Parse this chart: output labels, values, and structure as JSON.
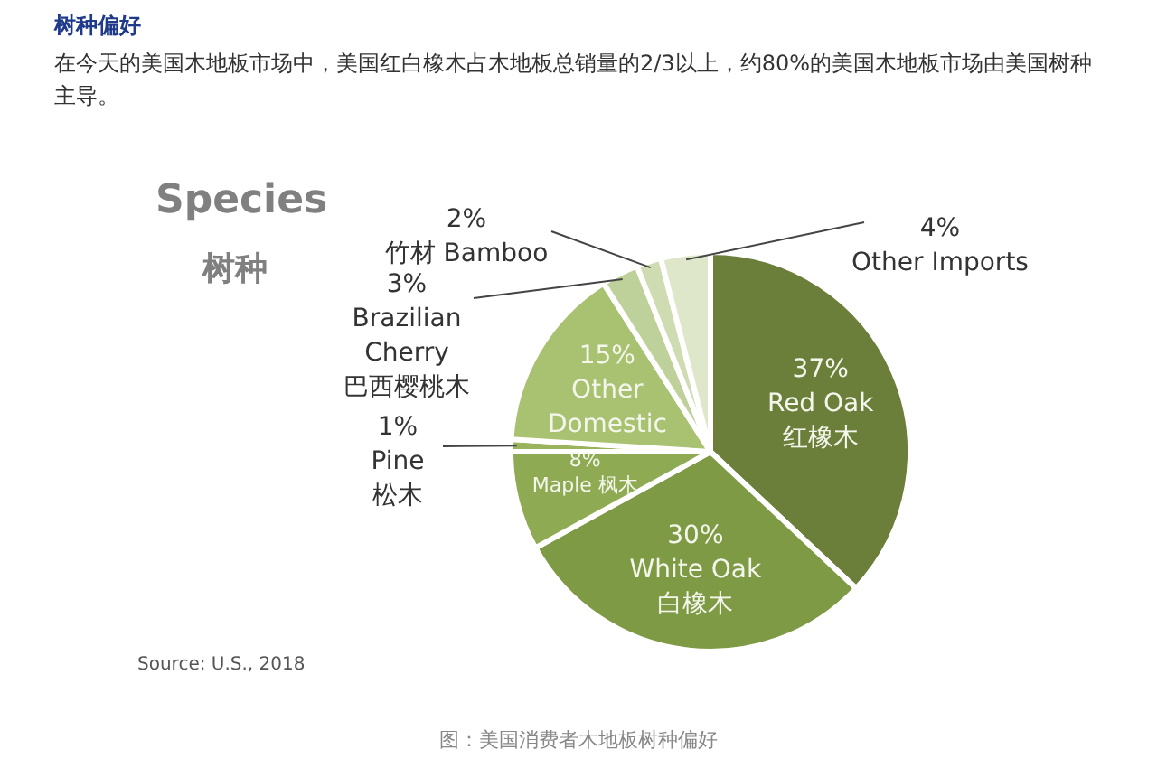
{
  "chart_data": {
    "type": "pie",
    "title": "树种偏好",
    "subtitle": "在今天的美国木地板市场中，美国红白橡木占木地板总销量的2/3以上，约80%的美国木地板市场由美国树种主导。",
    "categories": [
      "Red Oak\n红橡木",
      "White Oak\n白橡木",
      "Maple 枫木",
      "Pine\n松木",
      "Other\nDomestic",
      "Brazilian\nCherry\n巴西樱桃木",
      "竹材 Bamboo",
      "Other Imports"
    ],
    "values": [
      37,
      30,
      8,
      1,
      15,
      3,
      2,
      4
    ],
    "value_labels": [
      "37%",
      "30%",
      "8%",
      "1%",
      "15%",
      "3%",
      "2%",
      "4%"
    ],
    "colors": [
      "#6b7f3a",
      "#7f9a45",
      "#8eaa52",
      "#9ab45e",
      "#a9c271",
      "#bfd19a",
      "#cfdcb2",
      "#dfe7cb"
    ],
    "annotations": [
      "Species",
      "树种",
      "Source: U.S., 2018",
      "图：美国消费者木地板树种偏好"
    ],
    "legend": false
  }
}
